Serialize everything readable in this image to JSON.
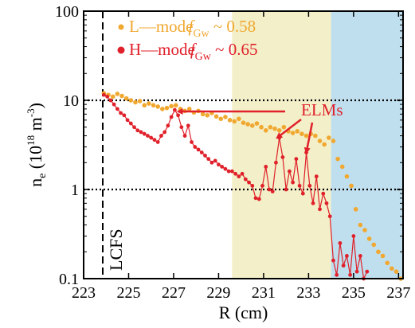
{
  "chart_data": {
    "type": "scatter",
    "xlabel": "R (cm)",
    "ylabel_parts": {
      "base": "n",
      "sub": "e",
      "open": " (10",
      "exp": "18",
      "unit": " m",
      "unit_exp": "-3",
      "close": ")"
    },
    "xlim": [
      223,
      237.2
    ],
    "ylim": [
      0.1,
      100
    ],
    "yscale": "log",
    "xticks": [
      "223",
      "225",
      "227",
      "229",
      "231",
      "233",
      "235",
      "237"
    ],
    "yticks": [
      "0.1",
      "1",
      "10",
      "100"
    ],
    "grid": false,
    "reference_lines": [
      {
        "axis": "y",
        "value": 1,
        "style": "dotted"
      },
      {
        "axis": "y",
        "value": 10,
        "style": "dotted"
      },
      {
        "axis": "x",
        "value": 223.85,
        "style": "dashed",
        "label": "LCFS"
      }
    ],
    "shaded_regions": [
      {
        "x0": 229.6,
        "x1": 234,
        "color": "#f3efc8"
      },
      {
        "x0": 234,
        "x1": 237.2,
        "color": "#bfdfee"
      }
    ],
    "colors": {
      "L_mode": "#f0a830",
      "H_mode": "#e0202a"
    },
    "legend": {
      "position": "top-left",
      "entries": [
        {
          "series": "L_mode",
          "label": "L—mode",
          "f_base": "f",
          "f_sub": "Gw",
          "f_value": " ~ 0.58"
        },
        {
          "series": "H_mode",
          "label": "H—mode",
          "f_base": "f",
          "f_sub": "Gw",
          "f_value": " ~ 0.65"
        }
      ]
    },
    "annotation": {
      "text": "ELMs",
      "arrows_to": [
        [
          227.2,
          7.5
        ],
        [
          231.6,
          3.8
        ],
        [
          232.9,
          2.6
        ]
      ]
    },
    "series": [
      {
        "name": "L—mode",
        "key": "L_mode",
        "connected": false,
        "x": [
          223.9,
          224.1,
          224.3,
          224.5,
          224.7,
          224.9,
          225.1,
          225.3,
          225.5,
          225.7,
          225.9,
          226.1,
          226.3,
          226.5,
          226.7,
          226.9,
          227.1,
          227.3,
          227.5,
          227.7,
          227.9,
          228.1,
          228.3,
          228.5,
          228.7,
          228.9,
          229.1,
          229.3,
          229.5,
          229.7,
          229.9,
          230.1,
          230.3,
          230.5,
          230.7,
          230.9,
          231.1,
          231.3,
          231.5,
          231.7,
          231.9,
          232.1,
          232.3,
          232.5,
          232.7,
          232.9,
          233.1,
          233.3,
          233.5,
          233.7,
          233.9,
          234.1,
          234.3,
          234.5,
          234.7,
          234.9,
          235.1,
          235.3,
          235.5,
          235.7,
          235.9,
          236.1,
          236.3,
          236.5,
          236.7,
          236.9,
          237.1
        ],
        "y": [
          12,
          11.5,
          11,
          11.8,
          11.2,
          10.5,
          10,
          9.5,
          9.8,
          8.8,
          9.2,
          8.8,
          8.5,
          8,
          8.2,
          8.6,
          8.8,
          8,
          7.6,
          8,
          7.3,
          7.6,
          7,
          6.8,
          7.2,
          6.6,
          6.2,
          6.5,
          6,
          5.8,
          6.2,
          5.6,
          5.4,
          5.2,
          5.5,
          5,
          4.6,
          5,
          4.8,
          4.6,
          5,
          4.5,
          4.3,
          4.5,
          4.2,
          4,
          4.2,
          4,
          3.5,
          3.2,
          3.8,
          3.5,
          2.2,
          1.8,
          1.4,
          1.1,
          0.6,
          0.4,
          0.35,
          0.28,
          0.24,
          0.2,
          0.18,
          0.15,
          0.13,
          0.12,
          0.1
        ]
      },
      {
        "name": "H—mode",
        "key": "H_mode",
        "connected": true,
        "x": [
          223.9,
          224.05,
          224.2,
          224.35,
          224.5,
          224.65,
          224.8,
          224.95,
          225.1,
          225.25,
          225.4,
          225.55,
          225.7,
          225.85,
          226.0,
          226.15,
          226.3,
          226.45,
          226.6,
          226.75,
          226.9,
          227.05,
          227.2,
          227.35,
          227.5,
          227.65,
          227.8,
          227.95,
          228.1,
          228.25,
          228.4,
          228.55,
          228.7,
          228.85,
          229.0,
          229.15,
          229.3,
          229.45,
          229.6,
          229.75,
          229.9,
          230.05,
          230.2,
          230.35,
          230.5,
          230.65,
          230.8,
          230.95,
          231.1,
          231.25,
          231.4,
          231.55,
          231.7,
          231.85,
          232.0,
          232.15,
          232.3,
          232.45,
          232.6,
          232.75,
          232.9,
          233.05,
          233.2,
          233.35,
          233.5,
          233.65,
          233.8,
          233.95,
          234.1,
          234.25,
          234.4,
          234.55,
          234.7,
          234.85,
          235.0,
          235.15,
          235.3,
          235.45,
          235.6
        ],
        "y": [
          11.5,
          11,
          10,
          9,
          8,
          7.2,
          6.8,
          6,
          5.5,
          5,
          4.6,
          4.4,
          4.2,
          4,
          3.8,
          3.6,
          3.4,
          4,
          4.4,
          5.2,
          6.5,
          7.8,
          6.8,
          5,
          4,
          5.2,
          3.4,
          3,
          2.8,
          2.6,
          2.4,
          2.2,
          2,
          2.1,
          1.9,
          1.8,
          1.7,
          1.6,
          1.6,
          1.5,
          1.4,
          1.5,
          1.3,
          1.2,
          1.1,
          0.8,
          0.78,
          1.1,
          1.8,
          1,
          0.95,
          2,
          3.8,
          2.3,
          1,
          1.6,
          1.2,
          2.2,
          1.1,
          0.9,
          2.6,
          1.1,
          0.7,
          1.4,
          0.6,
          0.9,
          0.7,
          0.5,
          0.16,
          0.11,
          0.25,
          0.14,
          0.18,
          0.11,
          0.3,
          0.12,
          0.18,
          0.1,
          0.12
        ]
      }
    ]
  }
}
